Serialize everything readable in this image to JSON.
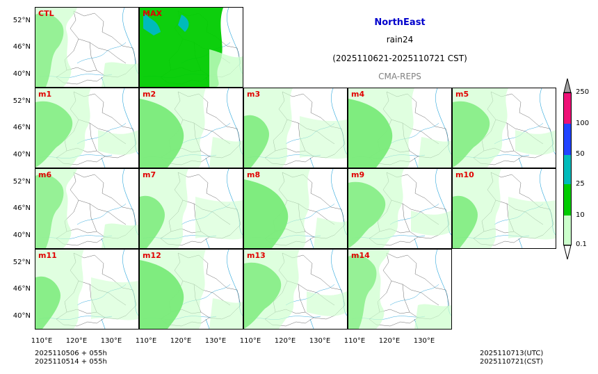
{
  "header": {
    "region": "NorthEast",
    "variable": "rain24",
    "period": "(2025110621-2025110721 CST)",
    "model": "CMA-REPS"
  },
  "colors": {
    "title": "#0000cc",
    "model": "#808080",
    "label": "#e00000"
  },
  "panels": [
    {
      "label": "CTL"
    },
    {
      "label": "MAX"
    },
    {
      "label": "m1"
    },
    {
      "label": "m2"
    },
    {
      "label": "m3"
    },
    {
      "label": "m4"
    },
    {
      "label": "m5"
    },
    {
      "label": "m6"
    },
    {
      "label": "m7"
    },
    {
      "label": "m8"
    },
    {
      "label": "m9"
    },
    {
      "label": "m10"
    },
    {
      "label": "m11"
    },
    {
      "label": "m12"
    },
    {
      "label": "m13"
    },
    {
      "label": "m14"
    }
  ],
  "axes": {
    "lat_ticks": [
      "52°N",
      "46°N",
      "40°N"
    ],
    "lon_ticks": [
      "110°E",
      "120°E",
      "130°E"
    ]
  },
  "colorbar": {
    "levels": [
      "0.1",
      "10",
      "25",
      "50",
      "100",
      "250"
    ],
    "colors": [
      "#ccffcc",
      "#00cc00",
      "#00bbbb",
      "#2244ff",
      "#ee1177",
      "#a0a0a0"
    ]
  },
  "footer": {
    "init_line1": "2025110506  +  055h",
    "init_line2": "2025110514  +  055h",
    "valid_utc": "2025110713(UTC)",
    "valid_cst": "2025110721(CST)"
  }
}
